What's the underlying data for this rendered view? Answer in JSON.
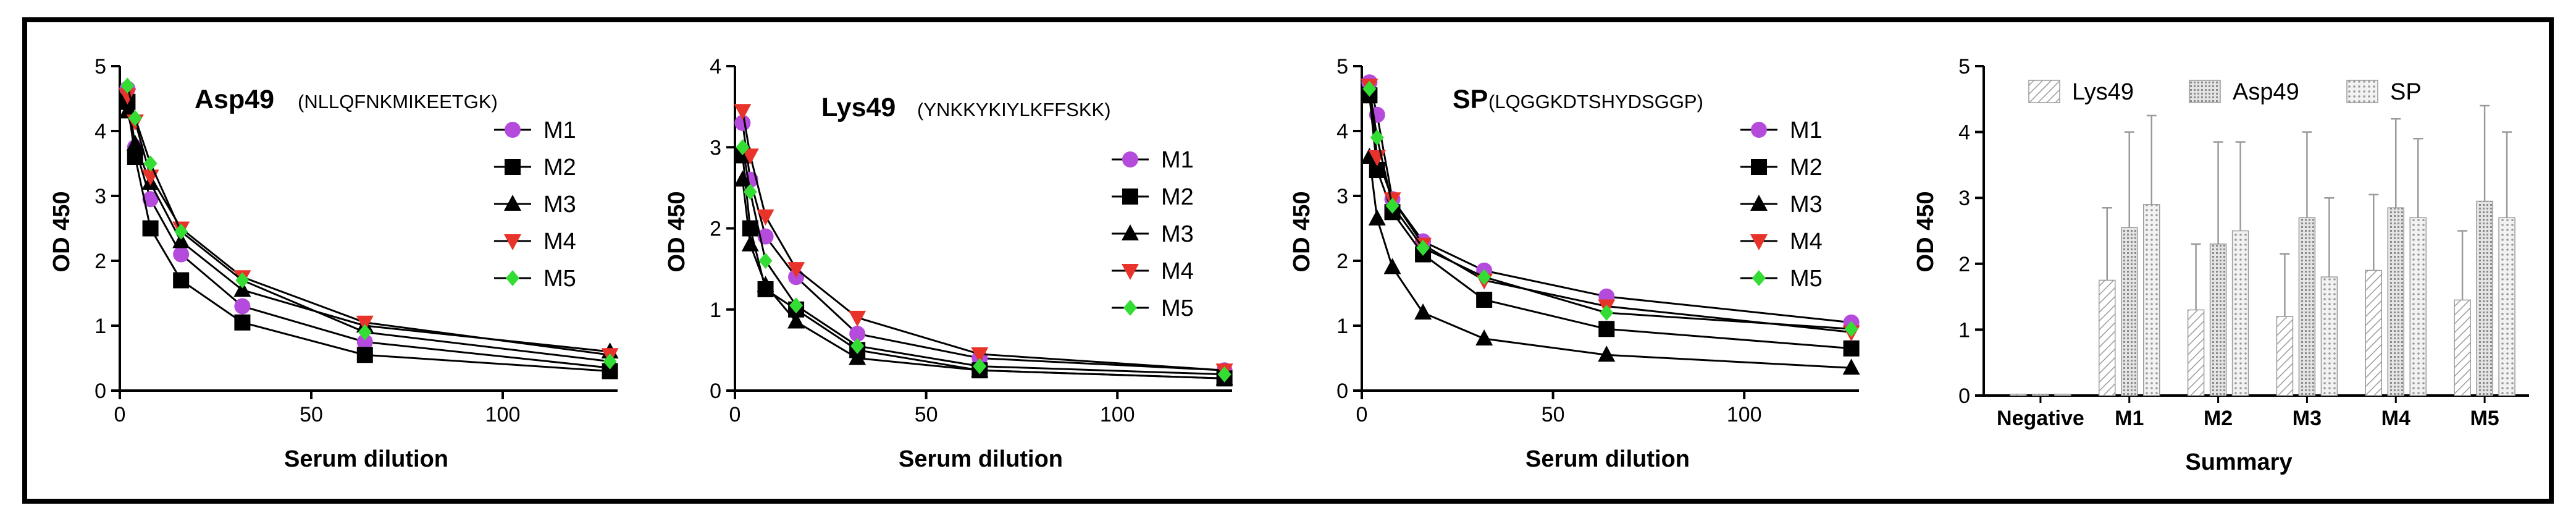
{
  "chart_data": [
    {
      "type": "line",
      "title": "Asp49",
      "subtitle": "(NLLQFNKMIKEETGK)",
      "xlabel": "Serum dilution",
      "ylabel": "OD 450",
      "xlim": [
        0,
        130
      ],
      "ylim": [
        0,
        5
      ],
      "xticks": [
        0,
        50,
        100
      ],
      "yticks": [
        0,
        1,
        2,
        3,
        4,
        5
      ],
      "legend_position": "right",
      "x": [
        2,
        4,
        8,
        16,
        32,
        64,
        128
      ],
      "series": [
        {
          "name": "M1",
          "marker": "circle",
          "color": "#b44bdc",
          "values": [
            4.65,
            3.75,
            2.95,
            2.1,
            1.3,
            0.75,
            0.35
          ]
        },
        {
          "name": "M2",
          "marker": "square",
          "color": "#000000",
          "values": [
            4.45,
            3.6,
            2.5,
            1.7,
            1.05,
            0.55,
            0.3
          ]
        },
        {
          "name": "M3",
          "marker": "triangle",
          "color": "#000000",
          "values": [
            4.3,
            3.8,
            3.2,
            2.3,
            1.55,
            1.0,
            0.6
          ]
        },
        {
          "name": "M4",
          "marker": "triangle-down",
          "color": "#e8332a",
          "values": [
            4.55,
            4.15,
            3.3,
            2.5,
            1.75,
            1.05,
            0.55
          ]
        },
        {
          "name": "M5",
          "marker": "diamond",
          "color": "#33dd33",
          "values": [
            4.7,
            4.2,
            3.5,
            2.45,
            1.7,
            0.9,
            0.45
          ]
        }
      ]
    },
    {
      "type": "line",
      "title": "Lys49",
      "subtitle": "(YNKKYKIYLKFFSKK)",
      "xlabel": "Serum dilution",
      "ylabel": "OD 450",
      "xlim": [
        0,
        130
      ],
      "ylim": [
        0,
        4
      ],
      "xticks": [
        0,
        50,
        100
      ],
      "yticks": [
        0,
        1,
        2,
        3,
        4
      ],
      "legend_position": "right",
      "x": [
        2,
        4,
        8,
        16,
        32,
        64,
        128
      ],
      "series": [
        {
          "name": "M1",
          "marker": "circle",
          "color": "#b44bdc",
          "values": [
            3.3,
            2.6,
            1.9,
            1.4,
            0.7,
            0.4,
            0.25
          ]
        },
        {
          "name": "M2",
          "marker": "square",
          "color": "#000000",
          "values": [
            2.9,
            2.0,
            1.25,
            1.0,
            0.5,
            0.25,
            0.15
          ]
        },
        {
          "name": "M3",
          "marker": "triangle",
          "color": "#000000",
          "values": [
            2.6,
            1.8,
            1.3,
            0.85,
            0.4,
            0.25,
            0.15
          ]
        },
        {
          "name": "M4",
          "marker": "triangle-down",
          "color": "#e8332a",
          "values": [
            3.45,
            2.9,
            2.15,
            1.5,
            0.9,
            0.45,
            0.25
          ]
        },
        {
          "name": "M5",
          "marker": "diamond",
          "color": "#33dd33",
          "values": [
            3.0,
            2.45,
            1.6,
            1.05,
            0.55,
            0.3,
            0.2
          ]
        }
      ]
    },
    {
      "type": "line",
      "title": "SP",
      "subtitle": "(LQGGKDTSHYDSGGP)",
      "xlabel": "Serum dilution",
      "ylabel": "OD 450",
      "xlim": [
        0,
        130
      ],
      "ylim": [
        0,
        5
      ],
      "xticks": [
        0,
        50,
        100
      ],
      "yticks": [
        0,
        1,
        2,
        3,
        4,
        5
      ],
      "legend_position": "right",
      "x": [
        2,
        4,
        8,
        16,
        32,
        64,
        128
      ],
      "series": [
        {
          "name": "M1",
          "marker": "circle",
          "color": "#b44bdc",
          "values": [
            4.75,
            4.25,
            2.95,
            2.3,
            1.85,
            1.45,
            1.05
          ]
        },
        {
          "name": "M2",
          "marker": "square",
          "color": "#000000",
          "values": [
            4.55,
            3.4,
            2.75,
            2.1,
            1.4,
            0.95,
            0.65
          ]
        },
        {
          "name": "M3",
          "marker": "triangle",
          "color": "#000000",
          "values": [
            3.6,
            2.65,
            1.9,
            1.2,
            0.8,
            0.55,
            0.35
          ]
        },
        {
          "name": "M4",
          "marker": "triangle-down",
          "color": "#e8332a",
          "values": [
            4.7,
            3.6,
            2.95,
            2.25,
            1.7,
            1.3,
            0.9
          ]
        },
        {
          "name": "M5",
          "marker": "diamond",
          "color": "#33dd33",
          "values": [
            4.65,
            3.9,
            2.85,
            2.2,
            1.75,
            1.2,
            0.95
          ]
        }
      ]
    },
    {
      "type": "bar",
      "title": "",
      "xlabel": "Summary",
      "ylabel": "OD 450",
      "ylim": [
        0,
        5
      ],
      "yticks": [
        0,
        1,
        2,
        3,
        4,
        5
      ],
      "legend_position": "top",
      "categories": [
        "Negative",
        "M1",
        "M2",
        "M3",
        "M4",
        "M5"
      ],
      "series": [
        {
          "name": "Lys49",
          "pattern": "diagonal-hatch",
          "values": [
            0.02,
            1.75,
            1.3,
            1.2,
            1.9,
            1.45
          ],
          "errors": [
            0,
            1.1,
            1.0,
            0.95,
            1.15,
            1.05
          ]
        },
        {
          "name": "Asp49",
          "pattern": "dense-grid",
          "values": [
            0.02,
            2.55,
            2.3,
            2.7,
            2.85,
            2.95
          ],
          "errors": [
            0,
            1.45,
            1.55,
            1.3,
            1.35,
            1.45
          ]
        },
        {
          "name": "SP",
          "pattern": "dot-grid",
          "values": [
            0.02,
            2.9,
            2.5,
            1.8,
            2.7,
            2.7
          ],
          "errors": [
            0,
            1.35,
            1.35,
            1.2,
            1.2,
            1.3
          ]
        }
      ]
    }
  ]
}
